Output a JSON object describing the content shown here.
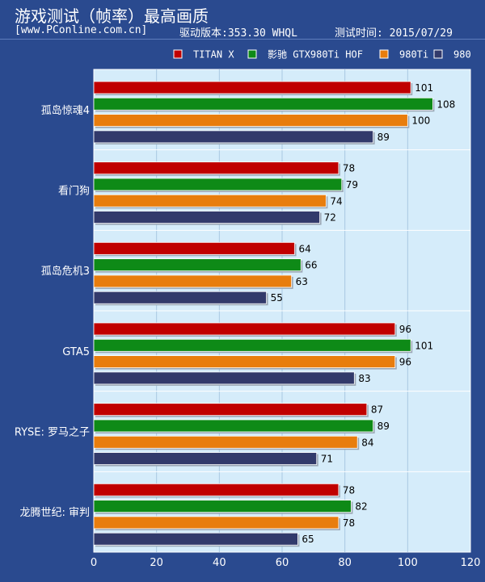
{
  "header": {
    "title": "游戏测试（帧率）最高画质",
    "site": "[www.PConline.com.cn]",
    "driver": "驱动版本:353.30 WHQL",
    "date": "测试时间: 2015/07/29"
  },
  "chart_data": {
    "type": "bar",
    "orientation": "horizontal",
    "categories": [
      "孤岛惊魂4",
      "看门狗",
      "孤岛危机3",
      "GTA5",
      "RYSE: 罗马之子",
      "龙腾世纪: 审判"
    ],
    "series": [
      {
        "name": "TITAN X",
        "color": "#c00000",
        "values": [
          101,
          78,
          64,
          96,
          87,
          78
        ]
      },
      {
        "name": "影驰 GTX980Ti HOF",
        "color": "#0e8a17",
        "values": [
          108,
          79,
          66,
          101,
          89,
          82
        ]
      },
      {
        "name": "980Ti",
        "color": "#e87d0d",
        "values": [
          100,
          74,
          63,
          96,
          84,
          78
        ]
      },
      {
        "name": "980",
        "color": "#323a6b",
        "values": [
          89,
          72,
          55,
          83,
          71,
          65
        ]
      }
    ],
    "xlim": [
      0,
      120
    ],
    "xticks": [
      0,
      20,
      40,
      60,
      80,
      100,
      120
    ],
    "legend_position": "top-right",
    "grid": true
  }
}
